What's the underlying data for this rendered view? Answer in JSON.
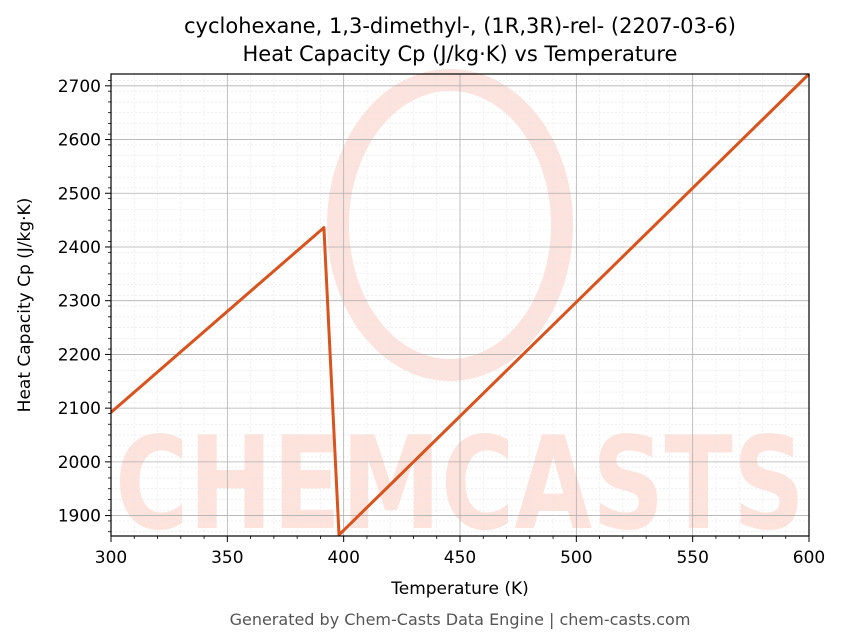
{
  "chart_data": {
    "type": "line",
    "title": "cyclohexane, 1,3-dimethyl-, (1R,3R)-rel- (2207-03-6)",
    "subtitle": "Heat Capacity Cp (J/kg·K) vs Temperature",
    "xlabel": "Temperature (K)",
    "ylabel": "Heat Capacity Cp (J/kg·K)",
    "xlim": [
      300,
      600
    ],
    "ylim": [
      1862,
      2722
    ],
    "xticks": [
      300,
      350,
      400,
      450,
      500,
      550,
      600
    ],
    "yticks": [
      1900,
      2000,
      2100,
      2200,
      2300,
      2400,
      2500,
      2600,
      2700
    ],
    "grid": true,
    "series": [
      {
        "color": "#d9531e",
        "x": [
          300,
          391.5,
          398,
          600
        ],
        "y": [
          2092,
          2436,
          1864,
          2722
        ]
      }
    ]
  },
  "watermark": {
    "text": "CHEMCASTS",
    "color": "#fde0d9"
  },
  "footer": "Generated by Chem-Casts Data Engine | chem-casts.com"
}
